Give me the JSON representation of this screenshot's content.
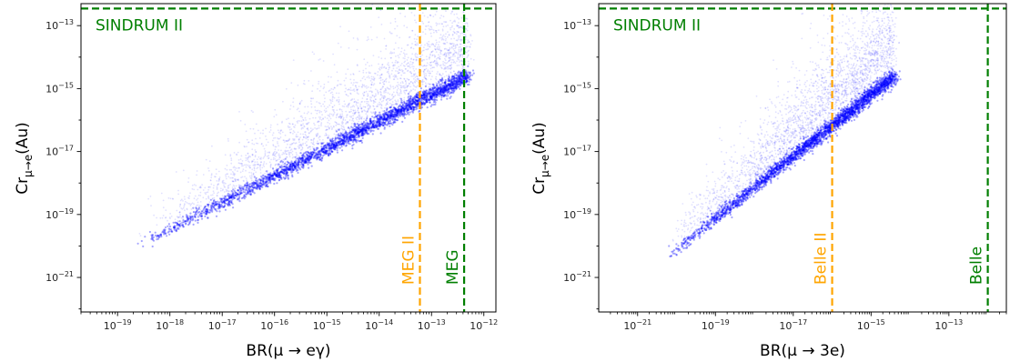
{
  "chart_data": [
    {
      "type": "scatter",
      "xlabel": "BR(μ → eγ)",
      "ylabel": "Cr_{μ→e}(Au)",
      "xscale": "log",
      "yscale": "log",
      "xlim": [
        2e-20,
        1.7e-12
      ],
      "ylim": [
        8e-23,
        5e-13
      ],
      "xticks": [
        {
          "value": 1e-19,
          "base": "10",
          "exp": "−19"
        },
        {
          "value": 1e-18,
          "base": "10",
          "exp": "−18"
        },
        {
          "value": 1e-17,
          "base": "10",
          "exp": "−17"
        },
        {
          "value": 1e-16,
          "base": "10",
          "exp": "−16"
        },
        {
          "value": 1e-15,
          "base": "10",
          "exp": "−15"
        },
        {
          "value": 1e-14,
          "base": "10",
          "exp": "−14"
        },
        {
          "value": 1e-13,
          "base": "10",
          "exp": "−13"
        },
        {
          "value": 1e-12,
          "base": "10",
          "exp": "−12"
        }
      ],
      "yticks": [
        {
          "value": 1e-21,
          "base": "10",
          "exp": "−21"
        },
        {
          "value": 1e-19,
          "base": "10",
          "exp": "−19"
        },
        {
          "value": 1e-17,
          "base": "10",
          "exp": "−17"
        },
        {
          "value": 1e-15,
          "base": "10",
          "exp": "−15"
        },
        {
          "value": 1e-13,
          "base": "10",
          "exp": "−13"
        }
      ],
      "point_color": "#0000ff",
      "band": {
        "x_start": 2.5e-19,
        "y_start": 1e-20,
        "x_end": 5e-13,
        "y_end": 2.5e-15
      },
      "hlines": [
        {
          "y": 3.5e-13,
          "label": "SINDRUM II",
          "color": "#007f00"
        }
      ],
      "vlines": [
        {
          "x": 6e-14,
          "label": "MEG II",
          "color": "#ffa500"
        },
        {
          "x": 4.2e-13,
          "label": "MEG",
          "color": "#007f00"
        }
      ]
    },
    {
      "type": "scatter",
      "xlabel": "BR(μ → 3e)",
      "ylabel": "Cr_{μ→e}(Au)",
      "xscale": "log",
      "yscale": "log",
      "xlim": [
        1e-22,
        3e-12
      ],
      "ylim": [
        8e-23,
        5e-13
      ],
      "xticks": [
        {
          "value": 1e-21,
          "base": "10",
          "exp": "−21"
        },
        {
          "value": 1e-19,
          "base": "10",
          "exp": "−19"
        },
        {
          "value": 1e-17,
          "base": "10",
          "exp": "−17"
        },
        {
          "value": 1e-15,
          "base": "10",
          "exp": "−15"
        },
        {
          "value": 1e-13,
          "base": "10",
          "exp": "−13"
        }
      ],
      "yticks": [
        {
          "value": 1e-21,
          "base": "10",
          "exp": "−21"
        },
        {
          "value": 1e-19,
          "base": "10",
          "exp": "−19"
        },
        {
          "value": 1e-17,
          "base": "10",
          "exp": "−17"
        },
        {
          "value": 1e-15,
          "base": "10",
          "exp": "−15"
        },
        {
          "value": 1e-13,
          "base": "10",
          "exp": "−13"
        }
      ],
      "point_color": "#0000ff",
      "band": {
        "x_start": 5e-21,
        "y_start": 4e-21,
        "x_end": 4e-15,
        "y_end": 2.5e-15
      },
      "hlines": [
        {
          "y": 3.5e-13,
          "label": "SINDRUM II",
          "color": "#007f00"
        }
      ],
      "vlines": [
        {
          "x": 1e-16,
          "label": "Belle II",
          "color": "#ffa500"
        },
        {
          "x": 1e-12,
          "label": "Belle",
          "color": "#007f00"
        }
      ]
    }
  ]
}
